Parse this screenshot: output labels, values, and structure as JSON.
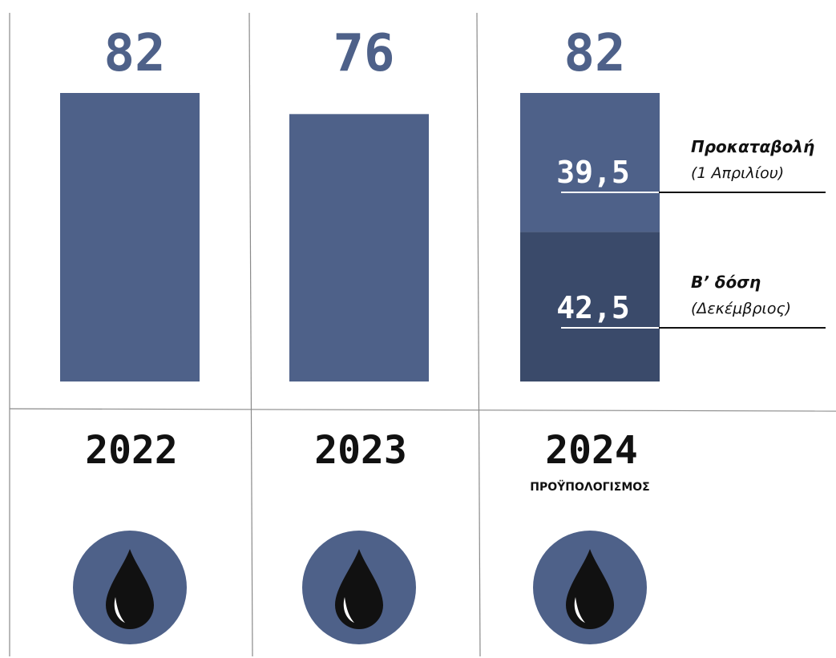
{
  "chart_data": {
    "type": "bar",
    "categories": [
      "2022",
      "2023",
      "2024"
    ],
    "category_sublabels": [
      "",
      "",
      "ΠΡΟΫΠΟΛΟΓΙΣΜΟΣ"
    ],
    "values": [
      82,
      76,
      82
    ],
    "value_labels": [
      "82",
      "76",
      "82"
    ],
    "stacked_segments": {
      "category": "2024",
      "segments": [
        {
          "value": 39.5,
          "value_label": "39,5",
          "label": "Προκαταβολή",
          "sublabel": "(1 Απριλίου)",
          "color": "#4e6189"
        },
        {
          "value": 42.5,
          "value_label": "42,5",
          "label": "Β’ δόση",
          "sublabel": "(Δεκέμβριος)",
          "color": "#3a4a6a"
        }
      ]
    },
    "bar_color": "#4e6189",
    "icons": [
      "oil-drop-icon",
      "oil-drop-icon",
      "oil-drop-icon"
    ],
    "icon_circle_color": "#4e6189",
    "icon_drop_color": "#111111",
    "grid": false
  }
}
